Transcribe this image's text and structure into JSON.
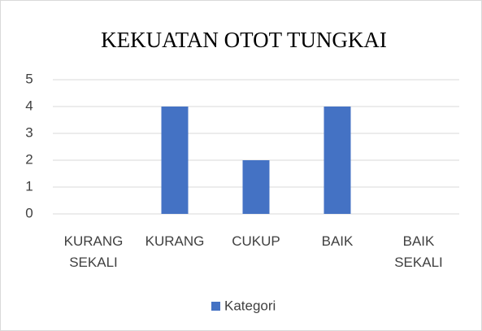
{
  "chart_data": {
    "type": "bar",
    "title": "KEKUATAN OTOT TUNGKAI",
    "categories": [
      "KURANG SEKALI",
      "KURANG",
      "CUKUP",
      "BAIK",
      "BAIK SEKALI"
    ],
    "series": [
      {
        "name": "Kategori",
        "color": "#4472c4",
        "values": [
          0,
          4,
          2,
          4,
          0
        ]
      }
    ],
    "ylim": [
      0,
      5
    ],
    "yticks": [
      0,
      1,
      2,
      3,
      4,
      5
    ],
    "grid": true,
    "legend": "bottom"
  }
}
